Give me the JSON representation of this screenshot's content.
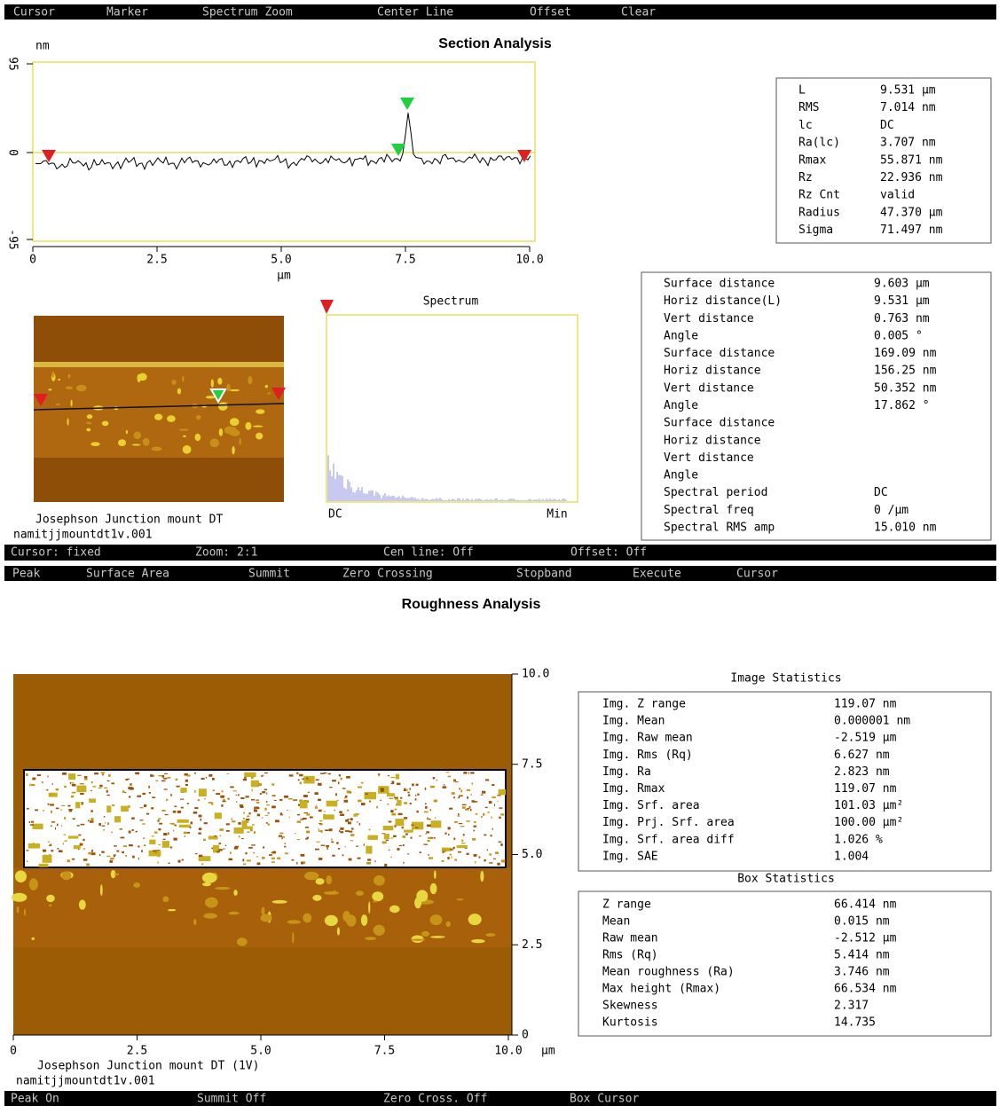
{
  "section_menu": [
    "Cursor",
    "Marker",
    "Spectrum Zoom",
    "Center Line",
    "Offset",
    "Clear"
  ],
  "section": {
    "title": "Section Analysis",
    "y_unit": "nm",
    "y_ticks": [
      "95",
      "0",
      "-95"
    ],
    "x_ticks": [
      "0",
      "2.5",
      "5.0",
      "7.5",
      "10.0"
    ],
    "x_unit": "µm",
    "image_caption": "Josephson Junction mount DT",
    "image_file": "namitjjmountdt1v.001",
    "spectrum": {
      "title": "Spectrum",
      "x_start": "DC",
      "x_end": "Min"
    },
    "stats": [
      [
        "L",
        "9.531 µm"
      ],
      [
        "RMS",
        "7.014 nm"
      ],
      [
        "lc",
        "DC"
      ],
      [
        "Ra(lc)",
        "3.707 nm"
      ],
      [
        "Rmax",
        "55.871 nm"
      ],
      [
        "Rz",
        "22.936 nm"
      ],
      [
        "Rz Cnt",
        "valid"
      ],
      [
        "Radius",
        "47.370 µm"
      ],
      [
        "Sigma",
        "71.497 nm"
      ]
    ],
    "cursor_stats": [
      [
        "Surface distance",
        "9.603 µm"
      ],
      [
        "Horiz distance(L)",
        "9.531 µm"
      ],
      [
        "Vert distance",
        "0.763 nm"
      ],
      [
        "Angle",
        "0.005 °"
      ],
      [
        "Surface distance",
        "169.09 nm"
      ],
      [
        "Horiz distance",
        "156.25 nm"
      ],
      [
        "Vert distance",
        "50.352 nm"
      ],
      [
        "Angle",
        "17.862 °"
      ],
      [
        "Surface distance"
      ],
      [
        "Horiz distance"
      ],
      [
        "Vert distance"
      ],
      [
        "Angle"
      ],
      [
        "Spectral period",
        "DC"
      ],
      [
        "Spectral freq",
        "0 /µm"
      ],
      [
        "Spectral RMS amp",
        "15.010 nm"
      ]
    ]
  },
  "section_status": [
    "Cursor: fixed",
    "Zoom: 2:1",
    "Cen line: Off",
    "Offset: Off"
  ],
  "roughness_menu": [
    "Peak",
    "Surface Area",
    "Summit",
    "Zero Crossing",
    "Stopband",
    "Execute",
    "Cursor"
  ],
  "roughness": {
    "title": "Roughness Analysis",
    "y_ticks": [
      "10.0",
      "7.5",
      "5.0",
      "2.5",
      "0"
    ],
    "x_ticks": [
      "0",
      "2.5",
      "5.0",
      "7.5",
      "10.0"
    ],
    "x_unit": "µm",
    "image_caption": "Josephson Junction mount DT (1V)",
    "image_file": "namitjjmountdt1v.001",
    "image_statistics": {
      "title": "Image Statistics",
      "rows": [
        [
          "Img. Z range",
          "119.07 nm"
        ],
        [
          "Img. Mean",
          "0.000001 nm"
        ],
        [
          "Img. Raw mean",
          "-2.519 µm"
        ],
        [
          "Img. Rms (Rq)",
          "6.627 nm"
        ],
        [
          "Img. Ra",
          "2.823 nm"
        ],
        [
          "Img. Rmax",
          "119.07 nm"
        ],
        [
          "Img. Srf. area",
          "101.03 µm²"
        ],
        [
          "Img. Prj. Srf. area",
          "100.00 µm²"
        ],
        [
          "Img. Srf. area diff",
          "1.026 %"
        ],
        [
          "Img. SAE",
          "1.004"
        ]
      ]
    },
    "box_statistics": {
      "title": "Box Statistics",
      "rows": [
        [
          "Z range",
          "66.414 nm"
        ],
        [
          "Mean",
          "0.015 nm"
        ],
        [
          "Raw mean",
          "-2.512 µm"
        ],
        [
          "Rms (Rq)",
          "5.414 nm"
        ],
        [
          "Mean roughness (Ra)",
          "3.746 nm"
        ],
        [
          "Max height (Rmax)",
          "66.534 nm"
        ],
        [
          "Skewness",
          "2.317"
        ],
        [
          "Kurtosis",
          "14.735"
        ]
      ]
    }
  },
  "roughness_status": [
    "Peak On",
    "Summit Off",
    "Zero Cross. Off",
    "Box Cursor"
  ]
}
